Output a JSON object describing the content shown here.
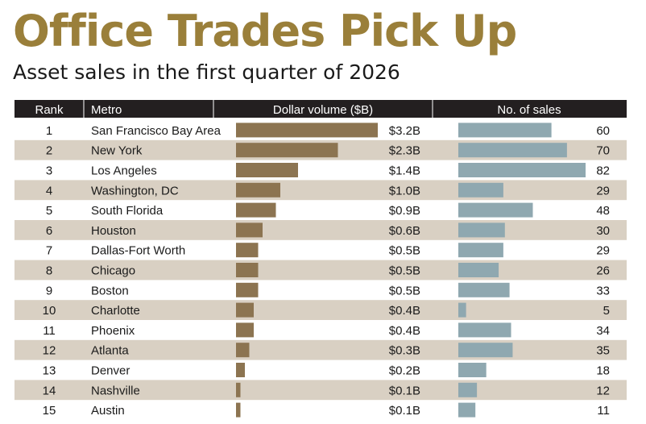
{
  "title": "Office Trades Pick Up",
  "subtitle": "Asset sales in the first quarter of 2026",
  "colors": {
    "title": "#9a7f3a",
    "header_bg": "#231f20",
    "row_shade": "#d9d0c3",
    "dollar_bar": "#8c7451",
    "sales_bar": "#8fa8b0"
  },
  "chart_data": {
    "type": "table",
    "columns": [
      "Rank",
      "Metro",
      "Dollar volume ($B)",
      "No. of sales"
    ],
    "rows": [
      {
        "rank": "1",
        "metro": "San Francisco Bay Area",
        "dollar": 3.2,
        "dollar_label": "$3.2B",
        "sales": 60
      },
      {
        "rank": "2",
        "metro": "New York",
        "dollar": 2.3,
        "dollar_label": "$2.3B",
        "sales": 70
      },
      {
        "rank": "3",
        "metro": "Los Angeles",
        "dollar": 1.4,
        "dollar_label": "$1.4B",
        "sales": 82
      },
      {
        "rank": "4",
        "metro": "Washington, DC",
        "dollar": 1.0,
        "dollar_label": "$1.0B",
        "sales": 29
      },
      {
        "rank": "5",
        "metro": "South Florida",
        "dollar": 0.9,
        "dollar_label": "$0.9B",
        "sales": 48
      },
      {
        "rank": "6",
        "metro": "Houston",
        "dollar": 0.6,
        "dollar_label": "$0.6B",
        "sales": 30
      },
      {
        "rank": "7",
        "metro": "Dallas-Fort Worth",
        "dollar": 0.5,
        "dollar_label": "$0.5B",
        "sales": 29
      },
      {
        "rank": "8",
        "metro": "Chicago",
        "dollar": 0.5,
        "dollar_label": "$0.5B",
        "sales": 26
      },
      {
        "rank": "9",
        "metro": "Boston",
        "dollar": 0.5,
        "dollar_label": "$0.5B",
        "sales": 33
      },
      {
        "rank": "10",
        "metro": "Charlotte",
        "dollar": 0.4,
        "dollar_label": "$0.4B",
        "sales": 5
      },
      {
        "rank": "11",
        "metro": "Phoenix",
        "dollar": 0.4,
        "dollar_label": "$0.4B",
        "sales": 34
      },
      {
        "rank": "12",
        "metro": "Atlanta",
        "dollar": 0.3,
        "dollar_label": "$0.3B",
        "sales": 35
      },
      {
        "rank": "13",
        "metro": "Denver",
        "dollar": 0.2,
        "dollar_label": "$0.2B",
        "sales": 18
      },
      {
        "rank": "14",
        "metro": "Nashville",
        "dollar": 0.1,
        "dollar_label": "$0.1B",
        "sales": 12
      },
      {
        "rank": "15",
        "metro": "Austin",
        "dollar": 0.1,
        "dollar_label": "$0.1B",
        "sales": 11
      }
    ]
  }
}
